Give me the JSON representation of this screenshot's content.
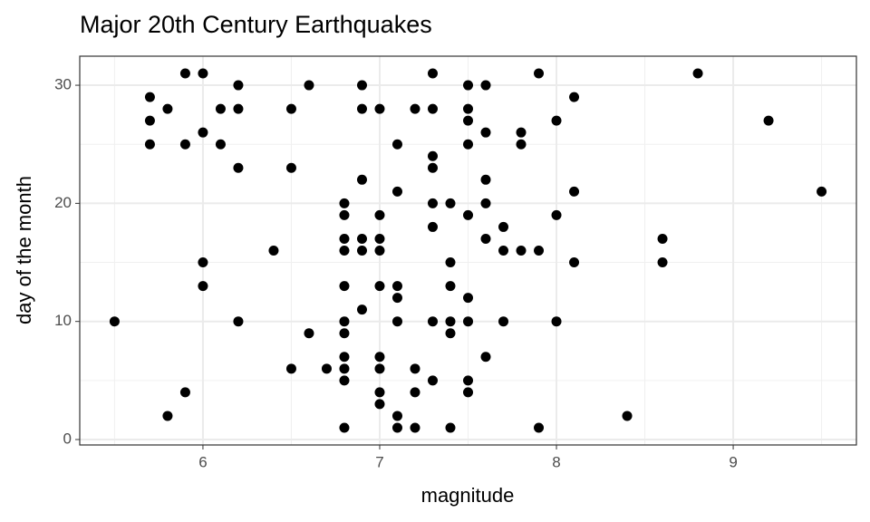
{
  "chart_data": {
    "type": "scatter",
    "title": "Major 20th Century Earthquakes",
    "x_label": "magnitude",
    "y_label": "day of the month",
    "color": "#000000",
    "grid": true,
    "minor_grid": true,
    "xlim": [
      5.303,
      9.697
    ],
    "ylim": [
      -0.46,
      32.46
    ],
    "xticks": [
      6,
      7,
      8,
      9
    ],
    "yticks": [
      0,
      10,
      20,
      30
    ],
    "x": [
      5.5,
      5.7,
      5.7,
      5.7,
      5.8,
      5.8,
      5.9,
      5.9,
      5.9,
      6.0,
      6.0,
      6.0,
      6.0,
      6.1,
      6.1,
      6.2,
      6.2,
      6.2,
      6.2,
      6.4,
      6.5,
      6.5,
      6.5,
      6.6,
      6.6,
      6.7,
      6.8,
      6.8,
      6.8,
      6.8,
      6.8,
      6.8,
      6.8,
      6.8,
      6.8,
      6.8,
      6.8,
      6.9,
      6.9,
      6.9,
      6.9,
      6.9,
      6.9,
      7.0,
      7.0,
      7.0,
      7.0,
      7.0,
      7.0,
      7.0,
      7.0,
      7.0,
      7.1,
      7.1,
      7.1,
      7.1,
      7.1,
      7.1,
      7.1,
      7.2,
      7.2,
      7.2,
      7.2,
      7.3,
      7.3,
      7.3,
      7.3,
      7.3,
      7.3,
      7.3,
      7.3,
      7.4,
      7.4,
      7.4,
      7.4,
      7.4,
      7.4,
      7.5,
      7.5,
      7.5,
      7.5,
      7.5,
      7.5,
      7.5,
      7.5,
      7.5,
      7.6,
      7.6,
      7.6,
      7.6,
      7.6,
      7.6,
      7.7,
      7.7,
      7.7,
      7.8,
      7.8,
      7.8,
      7.9,
      7.9,
      7.9,
      8.0,
      8.0,
      8.0,
      8.1,
      8.1,
      8.1,
      8.4,
      8.6,
      8.6,
      8.8,
      9.2,
      9.5
    ],
    "values": [
      10,
      29,
      27,
      25,
      28,
      2,
      31,
      25,
      4,
      31,
      26,
      15,
      13,
      28,
      25,
      30,
      28,
      23,
      10,
      16,
      28,
      23,
      6,
      30,
      9,
      6,
      20,
      19,
      17,
      16,
      13,
      10,
      9,
      7,
      6,
      5,
      1,
      30,
      28,
      22,
      17,
      16,
      11,
      28,
      19,
      17,
      16,
      13,
      7,
      6,
      4,
      3,
      25,
      21,
      13,
      12,
      10,
      2,
      1,
      28,
      6,
      4,
      1,
      31,
      28,
      24,
      23,
      20,
      18,
      10,
      5,
      20,
      15,
      13,
      10,
      9,
      1,
      30,
      28,
      27,
      25,
      19,
      12,
      10,
      5,
      4,
      30,
      26,
      22,
      20,
      17,
      7,
      18,
      16,
      10,
      26,
      25,
      16,
      31,
      16,
      1,
      27,
      19,
      10,
      29,
      21,
      15,
      2,
      17,
      15,
      31,
      27,
      21
    ]
  }
}
